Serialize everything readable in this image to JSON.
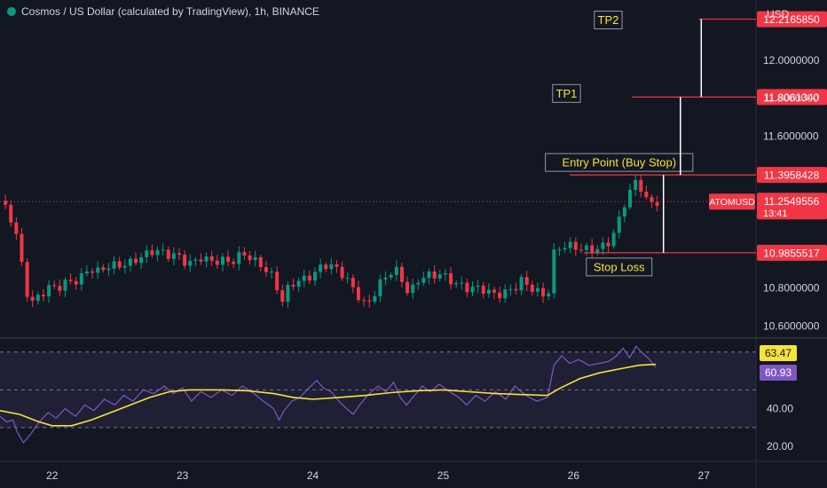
{
  "header": {
    "title": "Cosmos / US Dollar (calculated by TradingView), 1h, BINANCE"
  },
  "chart_data": {
    "type": "candlestick",
    "symbol": "ATOMUSD",
    "currency": "USD",
    "price_axis": {
      "range": [
        10.55,
        12.28
      ],
      "ticks": [
        "12.0000000",
        "11.8000000",
        "11.6000000",
        "10.8000000",
        "10.6000000"
      ]
    },
    "x_axis": {
      "range": [
        21.6,
        27.4
      ],
      "ticks": [
        {
          "value": 22,
          "label": "22"
        },
        {
          "value": 23,
          "label": "23"
        },
        {
          "value": 24,
          "label": "24"
        },
        {
          "value": 25,
          "label": "25"
        },
        {
          "value": 26,
          "label": "26"
        },
        {
          "value": 27,
          "label": "27"
        }
      ]
    },
    "close_path": [
      [
        21.6,
        11.26
      ],
      [
        21.67,
        11.18
      ],
      [
        21.74,
        11.04
      ],
      [
        21.78,
        10.86
      ],
      [
        21.83,
        10.72
      ],
      [
        21.9,
        10.77
      ],
      [
        21.98,
        10.8
      ],
      [
        22.05,
        10.79
      ],
      [
        22.12,
        10.83
      ],
      [
        22.2,
        10.85
      ],
      [
        22.28,
        10.91
      ],
      [
        22.35,
        10.88
      ],
      [
        22.42,
        10.9
      ],
      [
        22.5,
        10.92
      ],
      [
        22.58,
        10.94
      ],
      [
        22.66,
        10.96
      ],
      [
        22.73,
        10.97
      ],
      [
        22.8,
        10.99
      ],
      [
        22.88,
        10.98
      ],
      [
        22.95,
        10.99
      ],
      [
        23.02,
        10.94
      ],
      [
        23.08,
        10.92
      ],
      [
        23.14,
        10.95
      ],
      [
        23.22,
        10.94
      ],
      [
        23.3,
        10.96
      ],
      [
        23.38,
        10.94
      ],
      [
        23.46,
        10.97
      ],
      [
        23.55,
        10.94
      ],
      [
        23.62,
        10.92
      ],
      [
        23.68,
        10.88
      ],
      [
        23.72,
        10.82
      ],
      [
        23.76,
        10.72
      ],
      [
        23.8,
        10.78
      ],
      [
        23.86,
        10.82
      ],
      [
        23.92,
        10.84
      ],
      [
        23.98,
        10.87
      ],
      [
        24.03,
        10.9
      ],
      [
        24.08,
        10.93
      ],
      [
        24.14,
        10.91
      ],
      [
        24.2,
        10.88
      ],
      [
        24.26,
        10.84
      ],
      [
        24.31,
        10.8
      ],
      [
        24.36,
        10.76
      ],
      [
        24.41,
        10.71
      ],
      [
        24.46,
        10.76
      ],
      [
        24.52,
        10.82
      ],
      [
        24.58,
        10.86
      ],
      [
        24.63,
        10.9
      ],
      [
        24.68,
        10.85
      ],
      [
        24.74,
        10.78
      ],
      [
        24.8,
        10.84
      ],
      [
        24.86,
        10.86
      ],
      [
        24.92,
        10.85
      ],
      [
        24.98,
        10.87
      ],
      [
        25.05,
        10.85
      ],
      [
        25.12,
        10.83
      ],
      [
        25.18,
        10.8
      ],
      [
        25.24,
        10.79
      ],
      [
        25.32,
        10.78
      ],
      [
        25.4,
        10.77
      ],
      [
        25.48,
        10.79
      ],
      [
        25.55,
        10.8
      ],
      [
        25.6,
        10.83
      ],
      [
        25.65,
        10.8
      ],
      [
        25.72,
        10.78
      ],
      [
        25.8,
        10.76
      ],
      [
        25.85,
        10.99
      ],
      [
        25.9,
        11.02
      ],
      [
        25.97,
        11.01
      ],
      [
        26.05,
        11.0
      ],
      [
        26.12,
        11.01
      ],
      [
        26.2,
        11.02
      ],
      [
        26.27,
        11.04
      ],
      [
        26.33,
        11.1
      ],
      [
        26.38,
        11.22
      ],
      [
        26.42,
        11.28
      ],
      [
        26.46,
        11.36
      ],
      [
        26.5,
        11.37
      ],
      [
        26.54,
        11.3
      ],
      [
        26.58,
        11.25
      ],
      [
        26.63,
        11.25
      ]
    ],
    "levels": [
      {
        "name": "TP2",
        "price": 12.216585,
        "price_label": "12.2165850",
        "x_start": 26.96,
        "label_x": 26.4,
        "line_color": "#f23645"
      },
      {
        "name": "TP1",
        "price": 11.806134,
        "price_label": "11.8061340",
        "x_start": 26.45,
        "label_x": 26.08,
        "line_color": "#f23645"
      },
      {
        "name": "Entry Point (Buy Stop)",
        "price": 11.3958428,
        "price_label": "11.3958428",
        "x_start": 25.97,
        "label_x": 26.35,
        "line_color": "#f23645"
      },
      {
        "name": "Stop Loss",
        "price": 10.9855517,
        "price_label": "10.9855517",
        "x_start": 26.08,
        "label_x": 26.35,
        "line_color": "#f23645"
      }
    ],
    "current_price": {
      "label": "ATOMUSD",
      "value": "11.2549556",
      "countdown": "13:41"
    },
    "projection_lines": [
      {
        "x": 26.98,
        "from": 11.806134,
        "to": 12.216585
      },
      {
        "x": 26.82,
        "from": 11.3958428,
        "to": 11.806134
      },
      {
        "x": 26.69,
        "from": 10.9855517,
        "to": 11.3958428
      }
    ],
    "rsi": {
      "range": [
        14,
        76
      ],
      "ticks": [
        {
          "value": 40,
          "label": "40.00"
        },
        {
          "value": 20,
          "label": "20.00"
        }
      ],
      "bands": {
        "upper": 70,
        "middle": 50,
        "lower": 30
      },
      "value": "60.93",
      "ma_value": "63.47",
      "colors": {
        "rsi": "#7e57c2",
        "ma": "#f5e33b"
      },
      "rsi_path": [
        [
          21.6,
          36
        ],
        [
          21.65,
          33
        ],
        [
          21.7,
          34
        ],
        [
          21.73,
          28
        ],
        [
          21.78,
          22
        ],
        [
          21.84,
          27
        ],
        [
          21.9,
          33
        ],
        [
          21.97,
          38
        ],
        [
          22.03,
          35
        ],
        [
          22.1,
          40
        ],
        [
          22.18,
          36
        ],
        [
          22.25,
          42
        ],
        [
          22.32,
          39
        ],
        [
          22.4,
          45
        ],
        [
          22.48,
          42
        ],
        [
          22.55,
          47
        ],
        [
          22.62,
          44
        ],
        [
          22.7,
          50
        ],
        [
          22.78,
          48
        ],
        [
          22.86,
          52
        ],
        [
          22.93,
          48
        ],
        [
          23.0,
          51
        ],
        [
          23.07,
          44
        ],
        [
          23.14,
          49
        ],
        [
          23.22,
          46
        ],
        [
          23.3,
          50
        ],
        [
          23.38,
          47
        ],
        [
          23.46,
          52
        ],
        [
          23.55,
          48
        ],
        [
          23.62,
          44
        ],
        [
          23.7,
          40
        ],
        [
          23.74,
          34
        ],
        [
          23.78,
          39
        ],
        [
          23.84,
          44
        ],
        [
          23.9,
          46
        ],
        [
          23.97,
          51
        ],
        [
          24.03,
          55
        ],
        [
          24.08,
          51
        ],
        [
          24.14,
          49
        ],
        [
          24.2,
          44
        ],
        [
          24.26,
          40
        ],
        [
          24.31,
          37
        ],
        [
          24.36,
          42
        ],
        [
          24.42,
          47
        ],
        [
          24.5,
          52
        ],
        [
          24.56,
          49
        ],
        [
          24.62,
          54
        ],
        [
          24.67,
          46
        ],
        [
          24.72,
          42
        ],
        [
          24.78,
          47
        ],
        [
          24.84,
          52
        ],
        [
          24.9,
          49
        ],
        [
          24.97,
          53
        ],
        [
          25.05,
          49
        ],
        [
          25.12,
          46
        ],
        [
          25.18,
          42
        ],
        [
          25.25,
          47
        ],
        [
          25.32,
          44
        ],
        [
          25.4,
          49
        ],
        [
          25.48,
          45
        ],
        [
          25.55,
          52
        ],
        [
          25.6,
          49
        ],
        [
          25.66,
          46
        ],
        [
          25.72,
          44
        ],
        [
          25.8,
          46
        ],
        [
          25.85,
          63
        ],
        [
          25.91,
          68
        ],
        [
          25.97,
          64
        ],
        [
          26.04,
          66
        ],
        [
          26.12,
          63
        ],
        [
          26.2,
          64
        ],
        [
          26.27,
          65
        ],
        [
          26.33,
          68
        ],
        [
          26.38,
          72
        ],
        [
          26.43,
          67
        ],
        [
          26.48,
          73
        ],
        [
          26.52,
          70
        ],
        [
          26.57,
          67
        ],
        [
          26.63,
          62
        ]
      ],
      "ma_path": [
        [
          21.6,
          39
        ],
        [
          21.75,
          37
        ],
        [
          21.9,
          33
        ],
        [
          22.0,
          31
        ],
        [
          22.15,
          31
        ],
        [
          22.3,
          34
        ],
        [
          22.45,
          38
        ],
        [
          22.6,
          42
        ],
        [
          22.75,
          46
        ],
        [
          22.9,
          49
        ],
        [
          23.05,
          50
        ],
        [
          23.3,
          50
        ],
        [
          23.5,
          49.5
        ],
        [
          23.7,
          48
        ],
        [
          23.85,
          46
        ],
        [
          24.0,
          45
        ],
        [
          24.2,
          46
        ],
        [
          24.4,
          47
        ],
        [
          24.6,
          48.5
        ],
        [
          24.8,
          49.5
        ],
        [
          25.0,
          50
        ],
        [
          25.2,
          49
        ],
        [
          25.4,
          48
        ],
        [
          25.6,
          47.5
        ],
        [
          25.8,
          47
        ],
        [
          25.9,
          51
        ],
        [
          26.05,
          56
        ],
        [
          26.2,
          59
        ],
        [
          26.35,
          61
        ],
        [
          26.5,
          63
        ],
        [
          26.63,
          63.5
        ]
      ]
    }
  }
}
